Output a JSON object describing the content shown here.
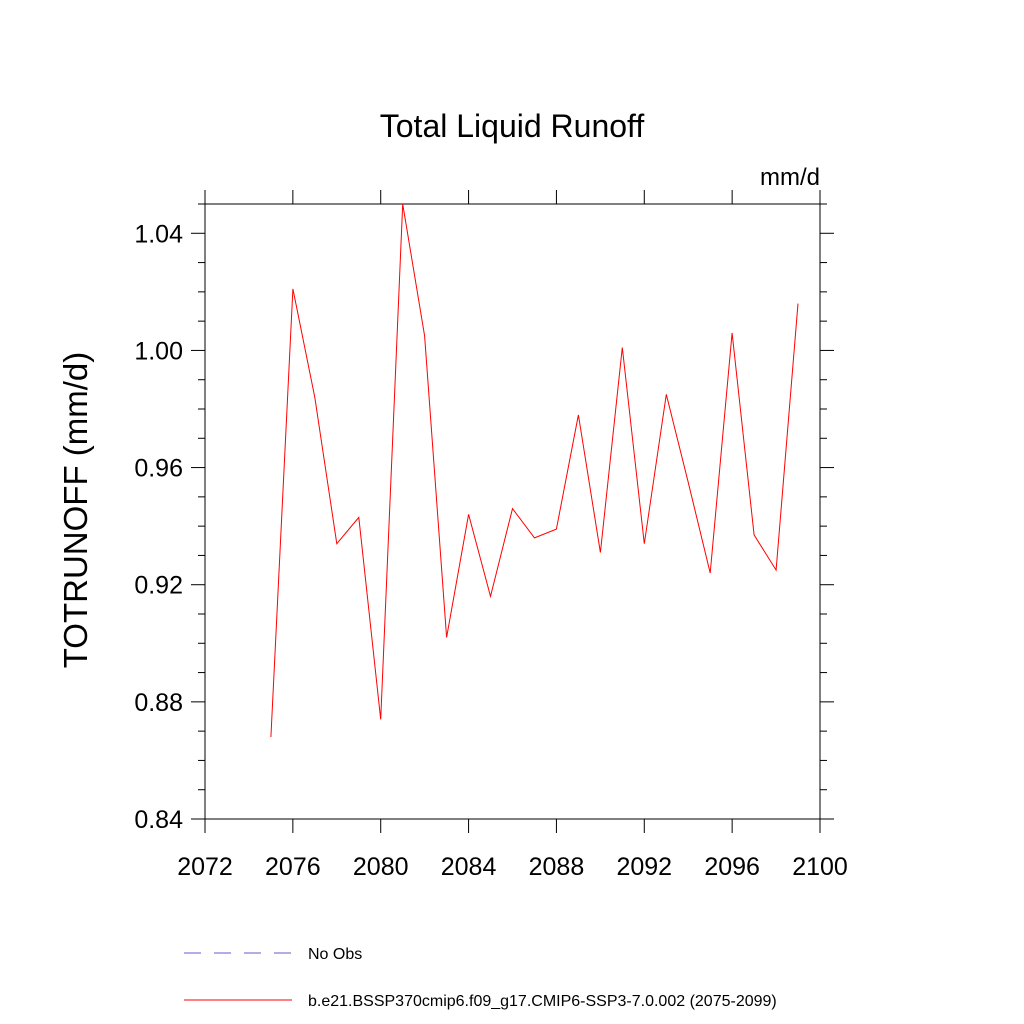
{
  "chart_data": {
    "type": "line",
    "title": "Total Liquid Runoff",
    "units": "mm/d",
    "ylabel": "TOTRUNOFF  (mm/d)",
    "xlabel": "",
    "xlim": [
      2072,
      2100
    ],
    "ylim": [
      0.84,
      1.05
    ],
    "x_ticks": [
      2072,
      2076,
      2080,
      2084,
      2088,
      2092,
      2096,
      2100
    ],
    "y_ticks": [
      0.84,
      0.88,
      0.92,
      0.96,
      1.0,
      1.04
    ],
    "y_tick_labels": [
      "0.84",
      "0.88",
      "0.92",
      "0.96",
      "1.00",
      "1.04"
    ],
    "grid": false,
    "legend_position": "bottom",
    "series": [
      {
        "name": "b.e21.BSSP370cmip6.f09_g17.CMIP6-SSP3-7.0.002 (2075-2099)",
        "color": "#ff0000",
        "style": "solid",
        "x": [
          2075,
          2076,
          2077,
          2078,
          2079,
          2080,
          2081,
          2082,
          2083,
          2084,
          2085,
          2086,
          2087,
          2088,
          2089,
          2090,
          2091,
          2092,
          2093,
          2094,
          2095,
          2096,
          2097,
          2098,
          2099
        ],
        "values": [
          0.868,
          1.021,
          0.984,
          0.934,
          0.943,
          0.874,
          1.05,
          1.005,
          0.902,
          0.944,
          0.916,
          0.946,
          0.936,
          0.939,
          0.978,
          0.931,
          1.001,
          0.934,
          0.985,
          0.955,
          0.924,
          1.006,
          0.937,
          0.925,
          1.016
        ]
      },
      {
        "name": "No Obs",
        "color": "#6a5acd",
        "style": "dashed",
        "x": [],
        "values": []
      }
    ]
  }
}
